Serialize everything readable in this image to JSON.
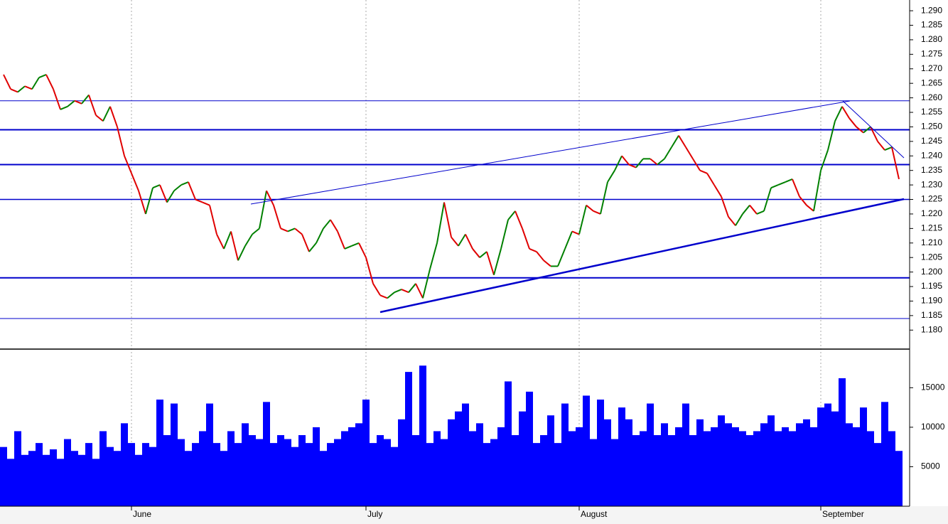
{
  "chart_data": [
    {
      "type": "line",
      "values": [
        1.268,
        1.263,
        1.262,
        1.264,
        1.263,
        1.267,
        1.268,
        1.263,
        1.256,
        1.257,
        1.259,
        1.258,
        1.261,
        1.254,
        1.252,
        1.257,
        1.25,
        1.24,
        1.234,
        1.228,
        1.22,
        1.229,
        1.23,
        1.224,
        1.228,
        1.23,
        1.231,
        1.225,
        1.224,
        1.223,
        1.213,
        1.208,
        1.214,
        1.204,
        1.209,
        1.213,
        1.215,
        1.228,
        1.223,
        1.215,
        1.214,
        1.215,
        1.213,
        1.207,
        1.21,
        1.215,
        1.218,
        1.214,
        1.208,
        1.209,
        1.21,
        1.205,
        1.196,
        1.192,
        1.191,
        1.193,
        1.194,
        1.193,
        1.196,
        1.191,
        1.201,
        1.21,
        1.224,
        1.212,
        1.209,
        1.213,
        1.208,
        1.205,
        1.207,
        1.199,
        1.208,
        1.218,
        1.221,
        1.215,
        1.208,
        1.207,
        1.204,
        1.202,
        1.202,
        1.208,
        1.214,
        1.213,
        1.223,
        1.221,
        1.22,
        1.231,
        1.235,
        1.24,
        1.237,
        1.236,
        1.239,
        1.239,
        1.237,
        1.239,
        1.243,
        1.247,
        1.243,
        1.239,
        1.235,
        1.234,
        1.23,
        1.226,
        1.219,
        1.216,
        1.22,
        1.223,
        1.22,
        1.221,
        1.229,
        1.23,
        1.231,
        1.232,
        1.226,
        1.223,
        1.221,
        1.235,
        1.242,
        1.252,
        1.257,
        1.253,
        1.25,
        1.248,
        1.25,
        1.245,
        1.242,
        1.243,
        1.232
      ],
      "up_color": "#008000",
      "down_color": "#e00000",
      "ylim": [
        1.1737,
        1.2937
      ],
      "yticks": [
        {
          "value": 1.18,
          "label": "1.180"
        },
        1.185,
        {
          "value": 1.19,
          "label": "1.190"
        },
        1.195,
        {
          "value": 1.2,
          "label": "1.200"
        },
        1.205,
        {
          "value": 1.21,
          "label": "1.210"
        },
        1.215,
        {
          "value": 1.22,
          "label": "1.220"
        },
        1.225,
        {
          "value": 1.23,
          "label": "1.230"
        },
        1.235,
        {
          "value": 1.24,
          "label": "1.240"
        },
        1.245,
        {
          "value": 1.25,
          "label": "1.250"
        },
        1.255,
        {
          "value": 1.26,
          "label": "1.260"
        },
        1.265,
        {
          "value": 1.27,
          "label": "1.270"
        },
        1.275,
        {
          "value": 1.28,
          "label": "1.280"
        },
        1.285,
        {
          "value": 1.29,
          "label": "1.290"
        }
      ],
      "levels": [
        1.259,
        1.249,
        1.237,
        1.225,
        1.198,
        1.184
      ],
      "level_widths": [
        1,
        2,
        2,
        1.5,
        2,
        1
      ],
      "level_color": "#0000cc"
    },
    {
      "type": "bar",
      "categories": [
        null,
        null,
        null,
        null,
        null,
        null,
        null,
        null,
        null,
        null,
        null,
        null,
        null,
        null,
        null,
        null,
        null,
        null,
        "June",
        null,
        null,
        null,
        null,
        null,
        null,
        null,
        null,
        null,
        null,
        null,
        null,
        null,
        null,
        null,
        null,
        null,
        null,
        null,
        null,
        null,
        null,
        null,
        null,
        null,
        null,
        null,
        null,
        null,
        null,
        null,
        null,
        "July",
        null,
        null,
        null,
        null,
        null,
        null,
        null,
        null,
        null,
        null,
        null,
        null,
        null,
        null,
        null,
        null,
        null,
        null,
        null,
        null,
        null,
        null,
        null,
        null,
        null,
        null,
        null,
        null,
        null,
        "August",
        null,
        null,
        null,
        null,
        null,
        null,
        null,
        null,
        null,
        null,
        null,
        null,
        null,
        null,
        null,
        null,
        null,
        null,
        null,
        null,
        null,
        null,
        null,
        null,
        null,
        null,
        null,
        null,
        null,
        null,
        null,
        null,
        null,
        "September",
        null,
        null,
        null,
        null,
        null,
        null,
        null,
        null,
        null,
        null,
        null
      ],
      "values": [
        7500,
        6000,
        9500,
        6500,
        7000,
        8000,
        6500,
        7200,
        6000,
        8500,
        7000,
        6500,
        8000,
        6000,
        9500,
        7500,
        7000,
        10500,
        8000,
        6500,
        8000,
        7500,
        13500,
        9000,
        13000,
        8500,
        7000,
        8000,
        9500,
        13000,
        8000,
        7000,
        9500,
        8000,
        10500,
        9000,
        8500,
        13200,
        8000,
        9000,
        8500,
        7500,
        9000,
        8000,
        10000,
        7000,
        8000,
        8500,
        9500,
        10000,
        10500,
        13500,
        8000,
        9000,
        8500,
        7500,
        11000,
        17000,
        9000,
        17800,
        8000,
        9500,
        8500,
        11000,
        12000,
        13000,
        9500,
        10500,
        8000,
        8500,
        10000,
        15800,
        9000,
        12000,
        14500,
        8000,
        9000,
        11500,
        8000,
        13000,
        9500,
        10000,
        14000,
        8500,
        13500,
        11000,
        8500,
        12500,
        11000,
        9000,
        9500,
        13000,
        9000,
        10500,
        9000,
        10000,
        13000,
        9000,
        11000,
        9500,
        10000,
        11500,
        10500,
        10000,
        9500,
        9000,
        9500,
        10500,
        11500,
        9500,
        10000,
        9500,
        10500,
        11000,
        10000,
        12500,
        13000,
        12000,
        16200,
        10500,
        10000,
        12500,
        9500,
        8000,
        13200,
        9500,
        7000
      ],
      "color": "#0000ff",
      "ylim": [
        0,
        19800
      ],
      "yticks": [
        5000,
        10000,
        15000
      ]
    }
  ]
}
